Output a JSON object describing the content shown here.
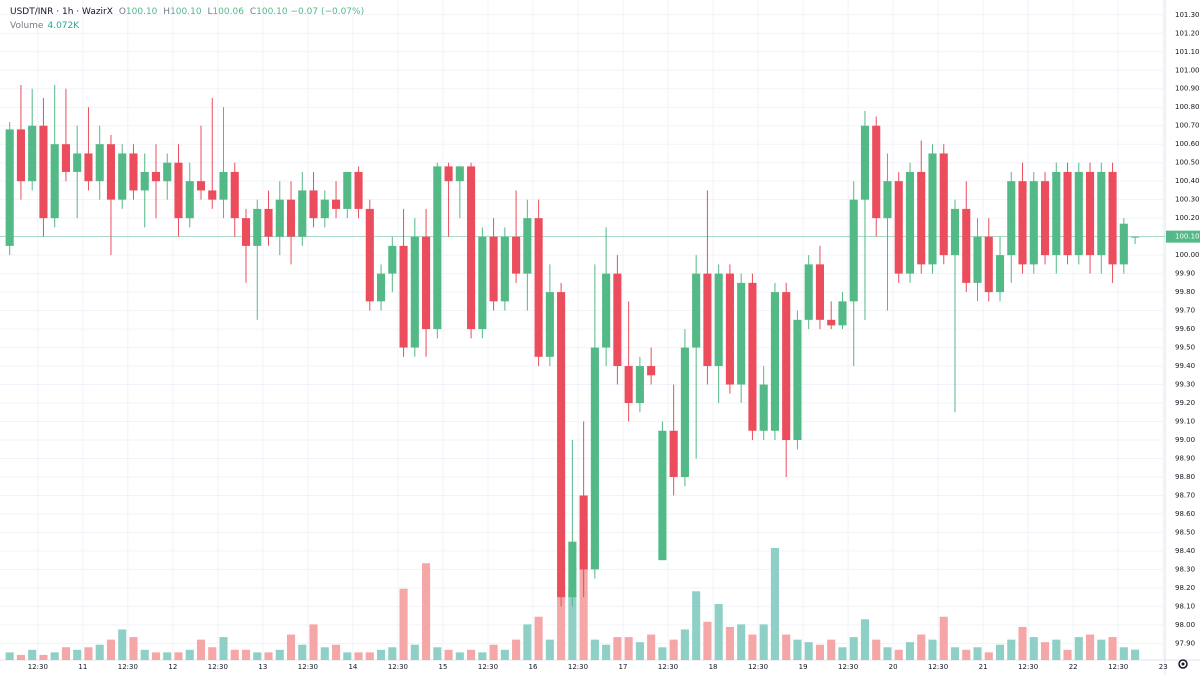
{
  "header": {
    "symbol": "USDT/INR · 1h · WazirX",
    "ohlc": [
      {
        "label": "O",
        "value": "100.10"
      },
      {
        "label": "H",
        "value": "100.10"
      },
      {
        "label": "L",
        "value": "100.06"
      },
      {
        "label": "C",
        "value": "100.10"
      }
    ],
    "change": "−0.07 (−0.07%)",
    "volume_label": "Volume",
    "volume_value": "4.072K"
  },
  "chart_data": {
    "type": "candlestick",
    "x": [
      10.1875,
      10.3125,
      10.4375,
      10.5625,
      10.6875,
      10.8125,
      10.9375,
      11.0625,
      11.1875,
      11.3125,
      11.4375,
      11.5625,
      11.6875,
      11.8125,
      11.9375,
      12.0625,
      12.1875,
      12.3125,
      12.4375,
      12.5625,
      12.6875,
      12.8125,
      12.9375,
      13.0625,
      13.1875,
      13.3125,
      13.4375,
      13.5625,
      13.6875,
      13.8125,
      13.9375,
      14.0625,
      14.1875,
      14.3125,
      14.4375,
      14.5625,
      14.6875,
      14.8125,
      14.9375,
      15.0625,
      15.1875,
      15.3125,
      15.4375,
      15.5625,
      15.6875,
      15.8125,
      15.9375,
      16.0625,
      16.1875,
      16.3125,
      16.4375,
      16.5625,
      16.6875,
      16.8125,
      16.9375,
      17.0625,
      17.1875,
      17.3125,
      17.4375,
      17.5625,
      17.6875,
      17.8125,
      17.9375,
      18.0625,
      18.1875,
      18.3125,
      18.4375,
      18.5625,
      18.6875,
      18.8125,
      18.9375,
      19.0625,
      19.1875,
      19.3125,
      19.4375,
      19.5625,
      19.6875,
      19.8125,
      19.9375,
      20.0625,
      20.1875,
      20.3125,
      20.4375,
      20.5625,
      20.6875,
      20.8125,
      20.9375,
      21.0625,
      21.1875,
      21.3125,
      21.4375,
      21.5625,
      21.6875,
      21.8125,
      21.9375,
      22.0625,
      22.1875,
      22.3125,
      22.4375,
      22.5625,
      22.6875
    ],
    "open": [
      100.05,
      100.68,
      100.4,
      100.7,
      100.2,
      100.6,
      100.45,
      100.55,
      100.4,
      100.6,
      100.3,
      100.55,
      100.35,
      100.45,
      100.4,
      100.5,
      100.2,
      100.4,
      100.35,
      100.3,
      100.45,
      100.2,
      100.05,
      100.25,
      100.1,
      100.3,
      100.1,
      100.35,
      100.2,
      100.3,
      100.25,
      100.45,
      100.25,
      99.75,
      99.9,
      100.05,
      99.5,
      100.1,
      99.6,
      100.48,
      100.4,
      100.48,
      99.6,
      100.1,
      99.75,
      100.1,
      99.9,
      100.2,
      99.45,
      99.8,
      98.15,
      98.7,
      98.3,
      99.5,
      99.9,
      99.4,
      99.2,
      99.4,
      98.35,
      99.05,
      98.8,
      99.5,
      99.9,
      99.4,
      99.9,
      99.3,
      99.85,
      99.05,
      99.05,
      99.8,
      99.0,
      99.65,
      99.95,
      99.65,
      99.62,
      99.75,
      100.3,
      100.7,
      100.2,
      100.4,
      99.9,
      100.45,
      99.95,
      100.55,
      100.0,
      100.25,
      99.85,
      100.1,
      99.8,
      100.0,
      100.4,
      99.95,
      100.4,
      100.0,
      100.45,
      100.0,
      100.45,
      100.0,
      100.45,
      99.95,
      100.1
    ],
    "high": [
      100.72,
      100.92,
      100.9,
      100.85,
      100.92,
      100.9,
      100.7,
      100.8,
      100.7,
      100.65,
      100.6,
      100.6,
      100.55,
      100.6,
      100.55,
      100.6,
      100.5,
      100.7,
      100.85,
      100.8,
      100.5,
      100.25,
      100.3,
      100.35,
      100.4,
      100.4,
      100.45,
      100.45,
      100.35,
      100.4,
      100.45,
      100.48,
      100.3,
      99.95,
      100.1,
      100.25,
      100.2,
      100.25,
      100.5,
      100.5,
      100.48,
      100.5,
      100.15,
      100.2,
      100.15,
      100.35,
      100.3,
      100.3,
      99.95,
      99.85,
      99.0,
      99.1,
      99.95,
      100.15,
      100.0,
      99.75,
      99.45,
      99.5,
      99.1,
      99.3,
      99.6,
      100.0,
      100.35,
      99.95,
      99.95,
      99.9,
      99.9,
      99.4,
      99.85,
      99.85,
      99.7,
      100.0,
      100.05,
      99.75,
      99.8,
      100.4,
      100.78,
      100.75,
      100.55,
      100.45,
      100.5,
      100.62,
      100.6,
      100.6,
      100.3,
      100.4,
      100.2,
      100.2,
      100.1,
      100.45,
      100.5,
      100.45,
      100.45,
      100.5,
      100.5,
      100.5,
      100.5,
      100.5,
      100.5,
      100.2,
      100.1
    ],
    "low": [
      100.0,
      100.3,
      100.35,
      100.1,
      100.15,
      100.4,
      100.2,
      100.35,
      100.3,
      100.0,
      100.25,
      100.3,
      100.15,
      100.2,
      100.3,
      100.1,
      100.15,
      100.3,
      100.25,
      100.2,
      100.1,
      99.85,
      99.65,
      100.05,
      100.0,
      99.95,
      100.05,
      100.15,
      100.15,
      100.2,
      100.2,
      100.2,
      99.7,
      99.7,
      99.8,
      99.45,
      99.45,
      99.45,
      99.55,
      100.1,
      100.2,
      99.55,
      99.55,
      99.7,
      99.7,
      99.85,
      99.7,
      99.4,
      99.4,
      98.1,
      98.1,
      98.15,
      98.25,
      99.4,
      99.3,
      99.1,
      99.15,
      99.3,
      98.35,
      98.7,
      98.75,
      98.9,
      99.3,
      99.2,
      99.25,
      99.2,
      99.0,
      99.0,
      99.0,
      98.8,
      98.95,
      99.6,
      99.6,
      99.6,
      99.6,
      99.4,
      99.65,
      100.1,
      99.7,
      99.85,
      99.85,
      99.9,
      99.9,
      99.95,
      99.15,
      99.8,
      99.75,
      99.75,
      99.75,
      99.85,
      99.9,
      99.9,
      99.95,
      99.9,
      99.95,
      99.95,
      99.9,
      99.9,
      99.85,
      99.9,
      100.06
    ],
    "close": [
      100.68,
      100.4,
      100.7,
      100.2,
      100.6,
      100.45,
      100.55,
      100.4,
      100.6,
      100.3,
      100.55,
      100.35,
      100.45,
      100.4,
      100.5,
      100.2,
      100.4,
      100.35,
      100.3,
      100.45,
      100.2,
      100.05,
      100.25,
      100.1,
      100.3,
      100.1,
      100.35,
      100.2,
      100.3,
      100.25,
      100.45,
      100.25,
      99.75,
      99.9,
      100.05,
      99.5,
      100.1,
      99.6,
      100.48,
      100.4,
      100.48,
      99.6,
      100.1,
      99.75,
      100.1,
      99.9,
      100.2,
      99.45,
      99.8,
      98.15,
      98.45,
      98.3,
      99.5,
      99.9,
      99.4,
      99.2,
      99.4,
      99.35,
      99.05,
      98.8,
      99.5,
      99.9,
      99.4,
      99.9,
      99.3,
      99.85,
      99.05,
      99.3,
      99.8,
      99.0,
      99.65,
      99.95,
      99.65,
      99.62,
      99.75,
      100.3,
      100.7,
      100.2,
      100.4,
      99.9,
      100.45,
      99.95,
      100.55,
      100.0,
      100.25,
      99.85,
      100.1,
      99.8,
      100.0,
      100.4,
      99.95,
      100.4,
      100.0,
      100.45,
      100.0,
      100.45,
      100.0,
      100.45,
      99.95,
      100.17,
      100.1
    ],
    "volume": [
      3,
      2,
      4,
      2,
      3,
      5,
      4,
      5,
      6,
      8,
      12,
      9,
      4,
      3,
      3,
      3,
      4,
      8,
      5,
      9,
      4,
      4,
      3,
      3,
      4,
      10,
      6,
      14,
      5,
      6,
      3,
      3,
      3,
      4,
      5,
      28,
      6,
      38,
      5,
      4,
      3,
      4,
      3,
      6,
      4,
      8,
      14,
      17,
      8,
      28,
      28,
      55,
      8,
      6,
      9,
      9,
      7,
      10,
      5,
      8,
      12,
      27,
      15,
      22,
      13,
      14,
      10,
      14,
      44,
      10,
      8,
      7,
      6,
      8,
      5,
      9,
      16,
      8,
      5,
      4,
      7,
      10,
      8,
      17,
      5,
      4,
      5,
      3,
      6,
      8,
      13,
      9,
      7,
      8,
      4,
      9,
      10,
      8,
      9,
      5,
      4.072
    ],
    "up_color": "#53b987",
    "down_color": "#eb4d5c",
    "volume_up_color": "#8fd0c6",
    "volume_down_color": "#f5a6a6",
    "last_price": {
      "value": 100.1,
      "label": "100.10"
    },
    "last_price_color": "#53b987",
    "xlim": [
      10.08,
      23.02
    ],
    "ylim": [
      97.81,
      101.38
    ],
    "xticks": [
      {
        "value": 10.5,
        "label": "12:30"
      },
      11,
      {
        "value": 11.5,
        "label": "12:30"
      },
      12,
      {
        "value": 12.5,
        "label": "12:30"
      },
      13,
      {
        "value": 13.5,
        "label": "12:30"
      },
      14,
      {
        "value": 14.5,
        "label": "12:30"
      },
      15,
      {
        "value": 15.5,
        "label": "12:30"
      },
      16,
      {
        "value": 16.5,
        "label": "12:30"
      },
      17,
      {
        "value": 17.5,
        "label": "12:30"
      },
      18,
      {
        "value": 18.5,
        "label": "12:30"
      },
      19,
      {
        "value": 19.5,
        "label": "12:30"
      },
      20,
      {
        "value": 20.5,
        "label": "12:30"
      },
      21,
      {
        "value": 21.5,
        "label": "12:30"
      },
      22,
      {
        "value": 22.5,
        "label": "12:30"
      },
      23
    ],
    "yticks": [
      {
        "value": 97.9,
        "label": "97.90"
      },
      {
        "value": 98,
        "label": "98.00"
      },
      {
        "value": 98.1,
        "label": "98.10"
      },
      {
        "value": 98.2,
        "label": "98.20"
      },
      {
        "value": 98.3,
        "label": "98.30"
      },
      {
        "value": 98.4,
        "label": "98.40"
      },
      {
        "value": 98.5,
        "label": "98.50"
      },
      {
        "value": 98.6,
        "label": "98.60"
      },
      {
        "value": 98.7,
        "label": "98.70"
      },
      {
        "value": 98.8,
        "label": "98.80"
      },
      {
        "value": 98.9,
        "label": "98.90"
      },
      {
        "value": 99,
        "label": "99.00"
      },
      {
        "value": 99.1,
        "label": "99.10"
      },
      {
        "value": 99.2,
        "label": "99.20"
      },
      {
        "value": 99.3,
        "label": "99.30"
      },
      {
        "value": 99.4,
        "label": "99.40"
      },
      {
        "value": 99.5,
        "label": "99.50"
      },
      {
        "value": 99.6,
        "label": "99.60"
      },
      {
        "value": 99.7,
        "label": "99.70"
      },
      {
        "value": 99.8,
        "label": "99.80"
      },
      {
        "value": 99.9,
        "label": "99.90"
      },
      {
        "value": 100,
        "label": "100.00"
      },
      {
        "value": 100.1,
        "label": "100.10"
      },
      {
        "value": 100.2,
        "label": "100.20"
      },
      {
        "value": 100.3,
        "label": "100.30"
      },
      {
        "value": 100.4,
        "label": "100.40"
      },
      {
        "value": 100.5,
        "label": "100.50"
      },
      {
        "value": 100.6,
        "label": "100.60"
      },
      {
        "value": 100.7,
        "label": "100.70"
      },
      {
        "value": 100.8,
        "label": "100.80"
      },
      {
        "value": 100.9,
        "label": "100.90"
      },
      {
        "value": 101,
        "label": "101.00"
      },
      {
        "value": 101.1,
        "label": "101.10"
      },
      {
        "value": 101.2,
        "label": "101.20"
      },
      {
        "value": 101.3,
        "label": "101.30"
      }
    ],
    "grid": true
  }
}
